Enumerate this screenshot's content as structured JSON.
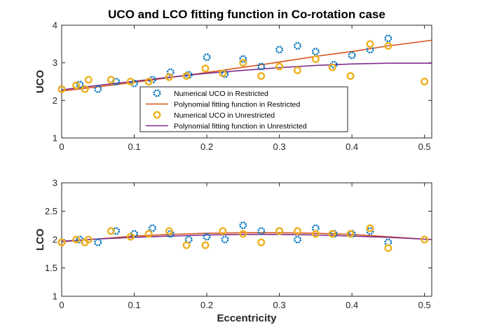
{
  "chart_data": [
    {
      "type": "scatter",
      "title": "UCO and LCO fitting function in Co-rotation case",
      "xlabel": "",
      "ylabel": "UCO",
      "xlim": [
        0,
        0.51
      ],
      "ylim": [
        1,
        4
      ],
      "xticks": [
        "0",
        "0.1",
        "0.2",
        "0.3",
        "0.4",
        "0.5"
      ],
      "yticks": [
        "1",
        "2",
        "3",
        "4"
      ],
      "legend_position": "center",
      "grid": false,
      "series": [
        {
          "name": "Numerical UCO in Restricted",
          "kind": "scatter",
          "color": "#0072BD",
          "points": [
            [
              0,
              2.3
            ],
            [
              0.025,
              2.42
            ],
            [
              0.05,
              2.3
            ],
            [
              0.075,
              2.5
            ],
            [
              0.1,
              2.45
            ],
            [
              0.125,
              2.55
            ],
            [
              0.15,
              2.75
            ],
            [
              0.175,
              2.68
            ],
            [
              0.2,
              3.15
            ],
            [
              0.225,
              2.7
            ],
            [
              0.25,
              3.1
            ],
            [
              0.275,
              2.9
            ],
            [
              0.3,
              3.35
            ],
            [
              0.325,
              3.45
            ],
            [
              0.35,
              3.3
            ],
            [
              0.375,
              2.95
            ],
            [
              0.4,
              3.2
            ],
            [
              0.425,
              3.35
            ],
            [
              0.45,
              3.65
            ]
          ]
        },
        {
          "name": "Polynomial fitting function in Restricted",
          "kind": "line",
          "color": "#D95319",
          "points": [
            [
              0,
              2.25
            ],
            [
              0.05,
              2.36
            ],
            [
              0.1,
              2.48
            ],
            [
              0.15,
              2.61
            ],
            [
              0.2,
              2.74
            ],
            [
              0.25,
              2.88
            ],
            [
              0.3,
              3.02
            ],
            [
              0.35,
              3.17
            ],
            [
              0.4,
              3.3
            ],
            [
              0.45,
              3.45
            ],
            [
              0.51,
              3.6
            ]
          ]
        },
        {
          "name": "Numerical UCO in Unrestricted",
          "kind": "scatter",
          "color": "#EDB120",
          "points": [
            [
              0,
              2.3
            ],
            [
              0.02,
              2.4
            ],
            [
              0.032,
              2.3
            ],
            [
              0.037,
              2.55
            ],
            [
              0.068,
              2.55
            ],
            [
              0.095,
              2.5
            ],
            [
              0.12,
              2.5
            ],
            [
              0.148,
              2.62
            ],
            [
              0.172,
              2.65
            ],
            [
              0.198,
              2.85
            ],
            [
              0.222,
              2.72
            ],
            [
              0.25,
              3.0
            ],
            [
              0.275,
              2.65
            ],
            [
              0.3,
              2.9
            ],
            [
              0.325,
              2.8
            ],
            [
              0.35,
              3.1
            ],
            [
              0.373,
              2.88
            ],
            [
              0.398,
              2.65
            ],
            [
              0.425,
              3.5
            ],
            [
              0.45,
              3.45
            ],
            [
              0.5,
              2.5
            ]
          ]
        },
        {
          "name": "Polynomial fitting function in Unrestricted",
          "kind": "line",
          "color": "#7E2F8E",
          "points": [
            [
              0,
              2.28
            ],
            [
              0.05,
              2.4
            ],
            [
              0.1,
              2.51
            ],
            [
              0.15,
              2.62
            ],
            [
              0.2,
              2.72
            ],
            [
              0.25,
              2.8
            ],
            [
              0.3,
              2.87
            ],
            [
              0.35,
              2.93
            ],
            [
              0.4,
              2.97
            ],
            [
              0.45,
              2.99
            ],
            [
              0.51,
              2.99
            ]
          ]
        }
      ]
    },
    {
      "type": "scatter",
      "title": "",
      "xlabel": "Eccentricity",
      "ylabel": "LCO",
      "xlim": [
        0,
        0.51
      ],
      "ylim": [
        1,
        3
      ],
      "xticks": [
        "0",
        "0.1",
        "0.2",
        "0.3",
        "0.4",
        "0.5"
      ],
      "yticks": [
        "1",
        "1.5",
        "2",
        "2.5",
        "3"
      ],
      "grid": false,
      "series": [
        {
          "kind": "scatter",
          "color": "#0072BD",
          "points": [
            [
              0,
              1.95
            ],
            [
              0.025,
              2.0
            ],
            [
              0.05,
              1.95
            ],
            [
              0.075,
              2.15
            ],
            [
              0.1,
              2.1
            ],
            [
              0.125,
              2.2
            ],
            [
              0.15,
              2.1
            ],
            [
              0.175,
              2.0
            ],
            [
              0.2,
              2.05
            ],
            [
              0.225,
              2.0
            ],
            [
              0.25,
              2.25
            ],
            [
              0.275,
              2.15
            ],
            [
              0.3,
              2.15
            ],
            [
              0.325,
              2.0
            ],
            [
              0.35,
              2.2
            ],
            [
              0.375,
              2.1
            ],
            [
              0.4,
              2.1
            ],
            [
              0.425,
              2.15
            ],
            [
              0.45,
              1.95
            ]
          ]
        },
        {
          "kind": "line",
          "color": "#D95319",
          "points": [
            [
              0,
              1.96
            ],
            [
              0.05,
              2.01
            ],
            [
              0.1,
              2.06
            ],
            [
              0.15,
              2.09
            ],
            [
              0.2,
              2.11
            ],
            [
              0.25,
              2.12
            ],
            [
              0.3,
              2.12
            ],
            [
              0.35,
              2.11
            ],
            [
              0.4,
              2.09
            ],
            [
              0.45,
              2.05
            ],
            [
              0.51,
              2.0
            ]
          ]
        },
        {
          "kind": "scatter",
          "color": "#EDB120",
          "points": [
            [
              0,
              1.95
            ],
            [
              0.02,
              2.0
            ],
            [
              0.032,
              1.95
            ],
            [
              0.037,
              2.0
            ],
            [
              0.068,
              2.15
            ],
            [
              0.095,
              2.05
            ],
            [
              0.12,
              2.1
            ],
            [
              0.148,
              2.15
            ],
            [
              0.172,
              1.9
            ],
            [
              0.198,
              1.9
            ],
            [
              0.222,
              2.15
            ],
            [
              0.25,
              2.1
            ],
            [
              0.275,
              1.95
            ],
            [
              0.3,
              2.15
            ],
            [
              0.325,
              2.15
            ],
            [
              0.35,
              2.1
            ],
            [
              0.373,
              2.1
            ],
            [
              0.398,
              2.1
            ],
            [
              0.425,
              2.2
            ],
            [
              0.45,
              1.85
            ],
            [
              0.5,
              2.0
            ]
          ]
        },
        {
          "kind": "line",
          "color": "#7E2F8E",
          "points": [
            [
              0,
              1.97
            ],
            [
              0.05,
              2.01
            ],
            [
              0.1,
              2.04
            ],
            [
              0.15,
              2.06
            ],
            [
              0.2,
              2.08
            ],
            [
              0.25,
              2.09
            ],
            [
              0.3,
              2.09
            ],
            [
              0.35,
              2.08
            ],
            [
              0.4,
              2.06
            ],
            [
              0.45,
              2.04
            ],
            [
              0.51,
              2.0
            ]
          ]
        }
      ]
    }
  ]
}
